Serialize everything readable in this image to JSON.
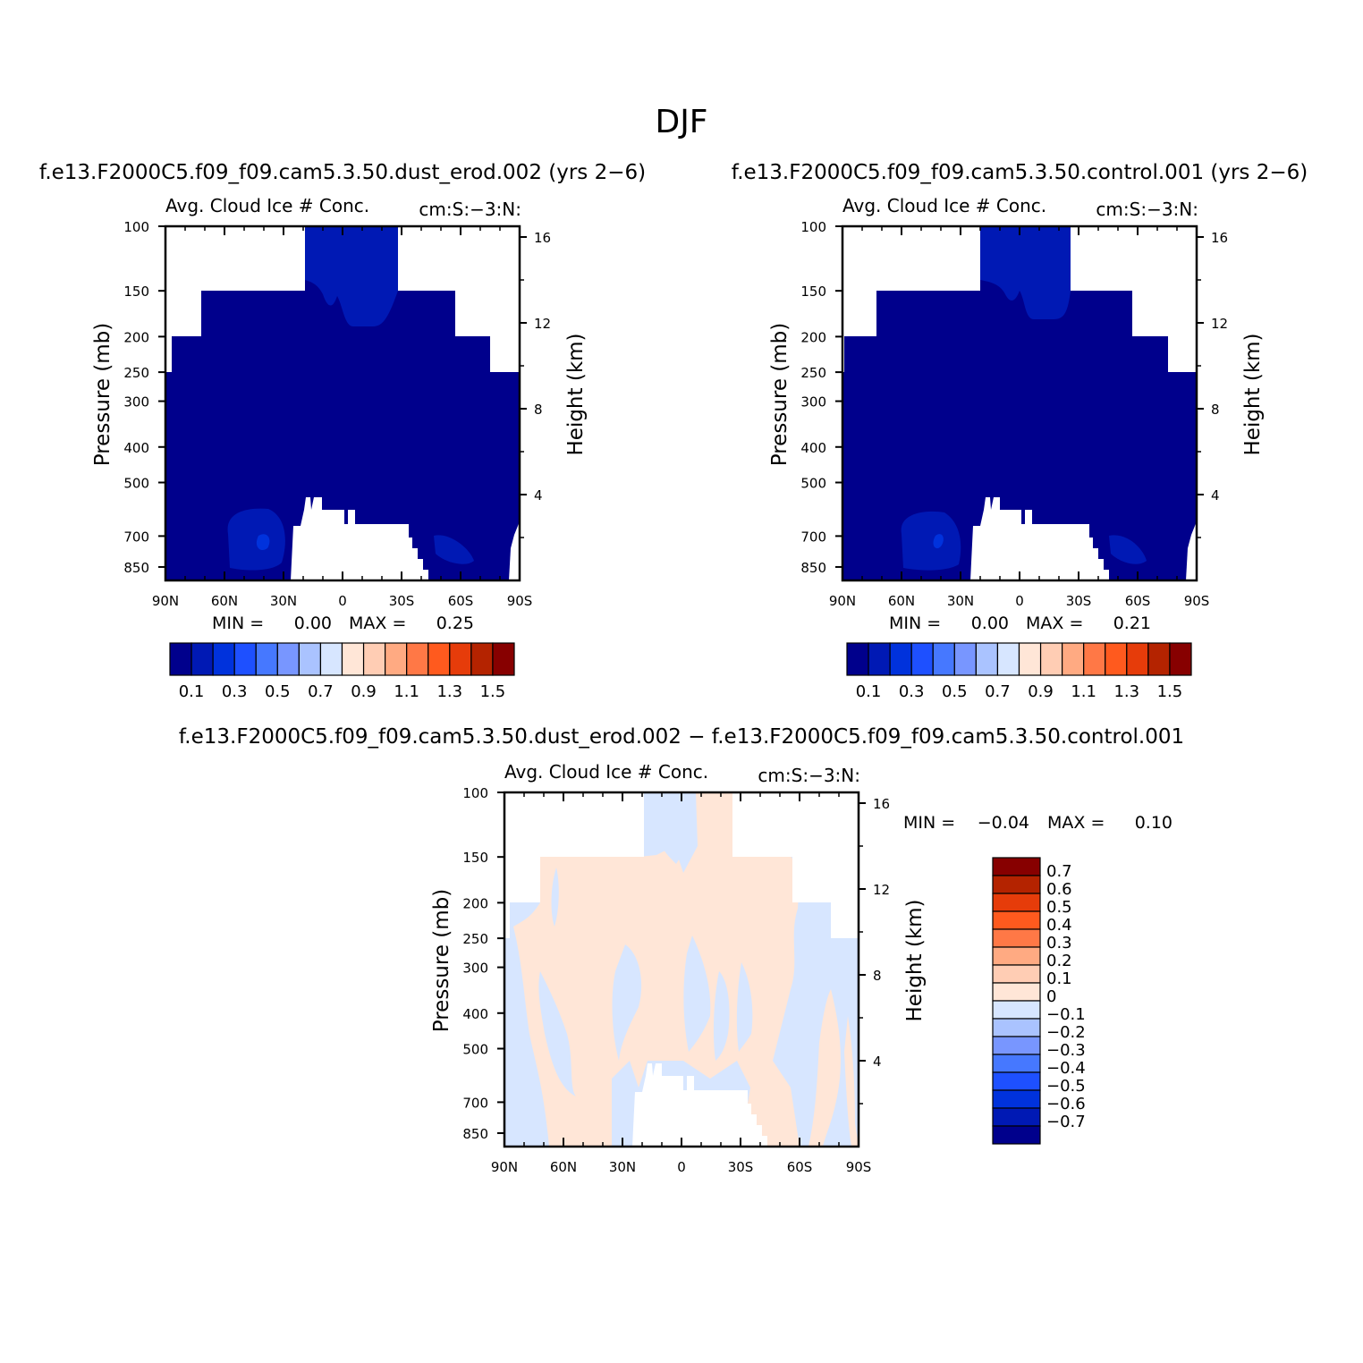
{
  "figure_title": "DJF",
  "chart_data": [
    {
      "type": "heatmap",
      "id": "p1",
      "title": "f.e13.F2000C5.f09_f09.cam5.3.50.dust_erod.002 (yrs 2−6)",
      "subtitle_left": "Avg. Cloud Ice # Conc.",
      "subtitle_right": "cm:S:−3:N:",
      "ylabel": "Pressure (mb)",
      "y2label": "Height (km)",
      "x_ticks": [
        "90N",
        "60N",
        "30N",
        "0",
        "30S",
        "60S",
        "90S"
      ],
      "y_ticks": [
        "100",
        "150",
        "200",
        "250",
        "300",
        "400",
        "500",
        "700",
        "850"
      ],
      "y2_ticks": [
        "16",
        "12",
        "8",
        "4"
      ],
      "min_label": "MIN =",
      "min_value": "0.00",
      "max_label": "MAX =",
      "max_value": "0.25",
      "colorbar_labels": [
        "0.1",
        "0.3",
        "0.5",
        "0.7",
        "0.9",
        "1.1",
        "1.3",
        "1.5"
      ]
    },
    {
      "type": "heatmap",
      "id": "p2",
      "title": "f.e13.F2000C5.f09_f09.cam5.3.50.control.001 (yrs 2−6)",
      "subtitle_left": "Avg. Cloud Ice # Conc.",
      "subtitle_right": "cm:S:−3:N:",
      "ylabel": "Pressure (mb)",
      "y2label": "Height (km)",
      "x_ticks": [
        "90N",
        "60N",
        "30N",
        "0",
        "30S",
        "60S",
        "90S"
      ],
      "y_ticks": [
        "100",
        "150",
        "200",
        "250",
        "300",
        "400",
        "500",
        "700",
        "850"
      ],
      "y2_ticks": [
        "16",
        "12",
        "8",
        "4"
      ],
      "min_label": "MIN =",
      "min_value": "0.00",
      "max_label": "MAX =",
      "max_value": "0.21",
      "colorbar_labels": [
        "0.1",
        "0.3",
        "0.5",
        "0.7",
        "0.9",
        "1.1",
        "1.3",
        "1.5"
      ]
    },
    {
      "type": "heatmap",
      "id": "p3",
      "title": "f.e13.F2000C5.f09_f09.cam5.3.50.dust_erod.002 − f.e13.F2000C5.f09_f09.cam5.3.50.control.001",
      "subtitle_left": "Avg. Cloud Ice # Conc.",
      "subtitle_right": "cm:S:−3:N:",
      "ylabel": "Pressure (mb)",
      "y2label": "Height (km)",
      "x_ticks": [
        "90N",
        "60N",
        "30N",
        "0",
        "30S",
        "60S",
        "90S"
      ],
      "y_ticks": [
        "100",
        "150",
        "200",
        "250",
        "300",
        "400",
        "500",
        "700",
        "850"
      ],
      "y2_ticks": [
        "16",
        "12",
        "8",
        "4"
      ],
      "min_label": "MIN =",
      "min_value": "−0.04",
      "max_label": "MAX =",
      "max_value": "0.10",
      "colorbar_labels": [
        "0.7",
        "0.6",
        "0.5",
        "0.4",
        "0.3",
        "0.2",
        "0.1",
        "0",
        "−0.1",
        "−0.2",
        "−0.3",
        "−0.4",
        "−0.5",
        "−0.6",
        "−0.7"
      ]
    }
  ],
  "colors": {
    "palette": [
      "#00008c",
      "#0019b4",
      "#0032dc",
      "#1e50ff",
      "#4678ff",
      "#7896ff",
      "#aac3ff",
      "#d7e6ff",
      "#ffe6d7",
      "#ffcdb4",
      "#ffaa82",
      "#ff7846",
      "#ff5a1e",
      "#e63c0a",
      "#b42300",
      "#870000"
    ],
    "fill_dark": "#00008c",
    "fill_mid": "#0019b4",
    "fill_light": "#0032dc",
    "diff_pos": "#ffe6d7",
    "diff_neg": "#d7e6ff"
  }
}
